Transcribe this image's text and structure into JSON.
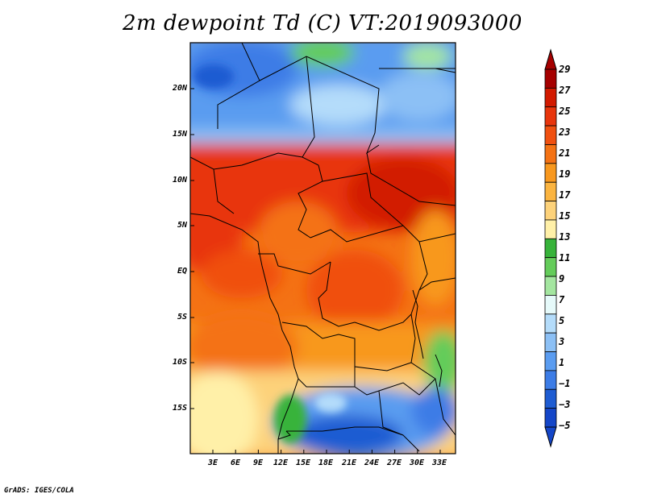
{
  "title": "2m dewpoint Td (C) VT:2019093000",
  "latitude_labels": [
    "20N",
    "15N",
    "10N",
    "5N",
    "EQ",
    "5S",
    "10S",
    "15S"
  ],
  "longitude_labels": [
    "3E",
    "6E",
    "9E",
    "12E",
    "15E",
    "18E",
    "21E",
    "24E",
    "27E",
    "30E",
    "33E"
  ],
  "colorbar": {
    "labels": [
      "29",
      "27",
      "25",
      "23",
      "21",
      "19",
      "17",
      "15",
      "13",
      "11",
      "9",
      "7",
      "5",
      "3",
      "1",
      "−1",
      "−3",
      "−5"
    ],
    "colors": [
      "#a50000",
      "#d21a00",
      "#e8350c",
      "#f05010",
      "#f47214",
      "#f8981e",
      "#fbb440",
      "#fdd27a",
      "#fff0a8",
      "#37b33a",
      "#64cc5a",
      "#a4e6a0",
      "#e6fafa",
      "#b4dcfa",
      "#8cc0f5",
      "#5a9cf0",
      "#3c7ce6",
      "#1e5cd2",
      "#1446c8"
    ]
  },
  "credit": "GrADS: IGES/COLA"
}
